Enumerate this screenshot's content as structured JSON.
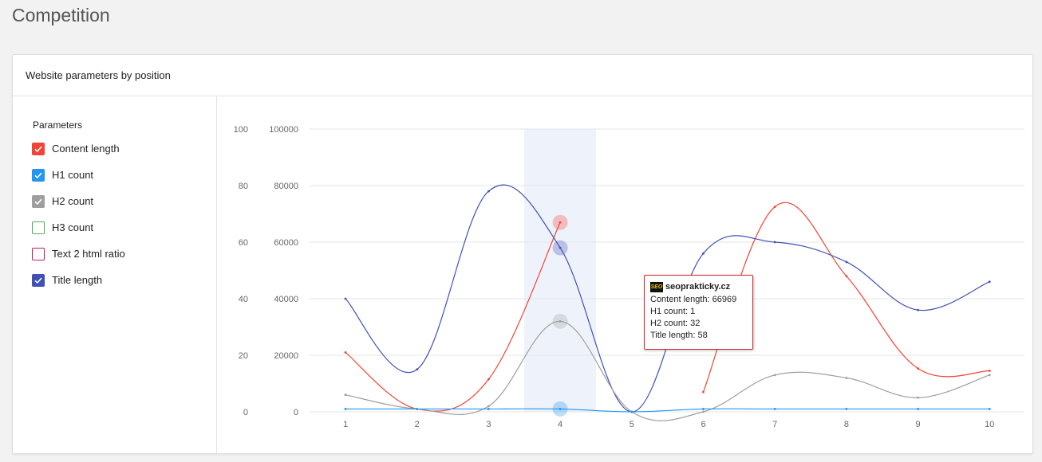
{
  "page": {
    "title": "Competition"
  },
  "card": {
    "title": "Website parameters by position"
  },
  "sidebar": {
    "title": "Parameters",
    "params": [
      {
        "label": "Content length",
        "color": "#f44336",
        "checked": true
      },
      {
        "label": "H1 count",
        "color": "#2196f3",
        "checked": true
      },
      {
        "label": "H2 count",
        "color": "#9e9e9e",
        "checked": true
      },
      {
        "label": "H3 count",
        "color": "#4caf50",
        "checked": false
      },
      {
        "label": "Text 2 html ratio",
        "color": "#c2185b",
        "checked": false
      },
      {
        "label": "Title length",
        "color": "#3f51b5",
        "checked": true
      }
    ]
  },
  "tooltip": {
    "icon_text": "SEO",
    "site": "seoprakticky.cz",
    "lines": [
      "Content length: 66969",
      "H1 count: 1",
      "H2 count: 32",
      "Title length: 58"
    ]
  },
  "chart_data": {
    "type": "line",
    "x": [
      1,
      2,
      3,
      4,
      5,
      6,
      7,
      8,
      9,
      10
    ],
    "left_axis": {
      "ticks": [
        "0",
        "20",
        "40",
        "60",
        "80",
        "100"
      ],
      "range": [
        0,
        100
      ]
    },
    "right_axis": {
      "ticks": [
        "0",
        "20000",
        "40000",
        "60000",
        "80000",
        "100000"
      ],
      "range": [
        0,
        100000
      ]
    },
    "grid": true,
    "highlight_x": 4,
    "series": [
      {
        "key": "content_length",
        "axis": "right",
        "color": "#f44336",
        "values": [
          21000,
          1000,
          11500,
          66969,
          null,
          7000,
          72500,
          48000,
          15300,
          14500
        ]
      },
      {
        "key": "title_length",
        "axis": "left",
        "color": "#3f51b5",
        "values": [
          40,
          15,
          78,
          58,
          0,
          56,
          60,
          53,
          36,
          46
        ]
      },
      {
        "key": "h2_count",
        "axis": "left",
        "color": "#9e9e9e",
        "values": [
          6,
          1,
          2,
          32,
          0,
          0,
          13,
          12,
          5,
          13
        ]
      },
      {
        "key": "h1_count",
        "axis": "left",
        "color": "#2196f3",
        "values": [
          1,
          1,
          1,
          1,
          0,
          1,
          1,
          1,
          1,
          1
        ]
      }
    ]
  }
}
